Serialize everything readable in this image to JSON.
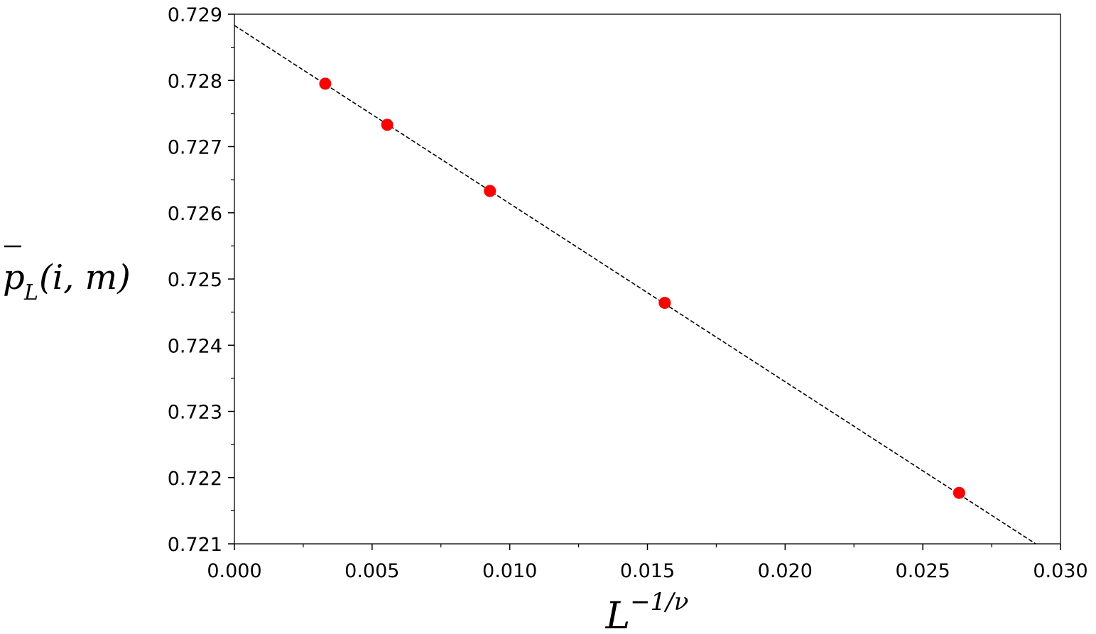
{
  "chart_data": {
    "type": "scatter",
    "xlabel_base": "L",
    "xlabel_sup": "−1/ν",
    "ylabel_main": "p",
    "ylabel_sub": "L",
    "ylabel_args": "(i, m)",
    "xlim": [
      0.0,
      0.03
    ],
    "ylim": [
      0.721,
      0.729
    ],
    "x_ticks": [
      0.0,
      0.005,
      0.01,
      0.015,
      0.02,
      0.025,
      0.03
    ],
    "x_tick_labels": [
      "0.000",
      "0.005",
      "0.010",
      "0.015",
      "0.020",
      "0.025",
      "0.030"
    ],
    "y_ticks": [
      0.721,
      0.722,
      0.723,
      0.724,
      0.725,
      0.726,
      0.727,
      0.728,
      0.729
    ],
    "y_tick_labels": [
      "0.721",
      "0.722",
      "0.723",
      "0.724",
      "0.725",
      "0.726",
      "0.727",
      "0.728",
      "0.729"
    ],
    "grid": false,
    "points": {
      "x": [
        0.0033,
        0.00555,
        0.00928,
        0.01563,
        0.02632
      ],
      "y": [
        0.72795,
        0.72733,
        0.72633,
        0.72464,
        0.72177
      ],
      "color": "#ff0000"
    },
    "fit_line": {
      "x": [
        0.0,
        0.0291
      ],
      "y": [
        0.72883,
        0.721
      ],
      "style": "dashed",
      "color": "#000000"
    }
  }
}
